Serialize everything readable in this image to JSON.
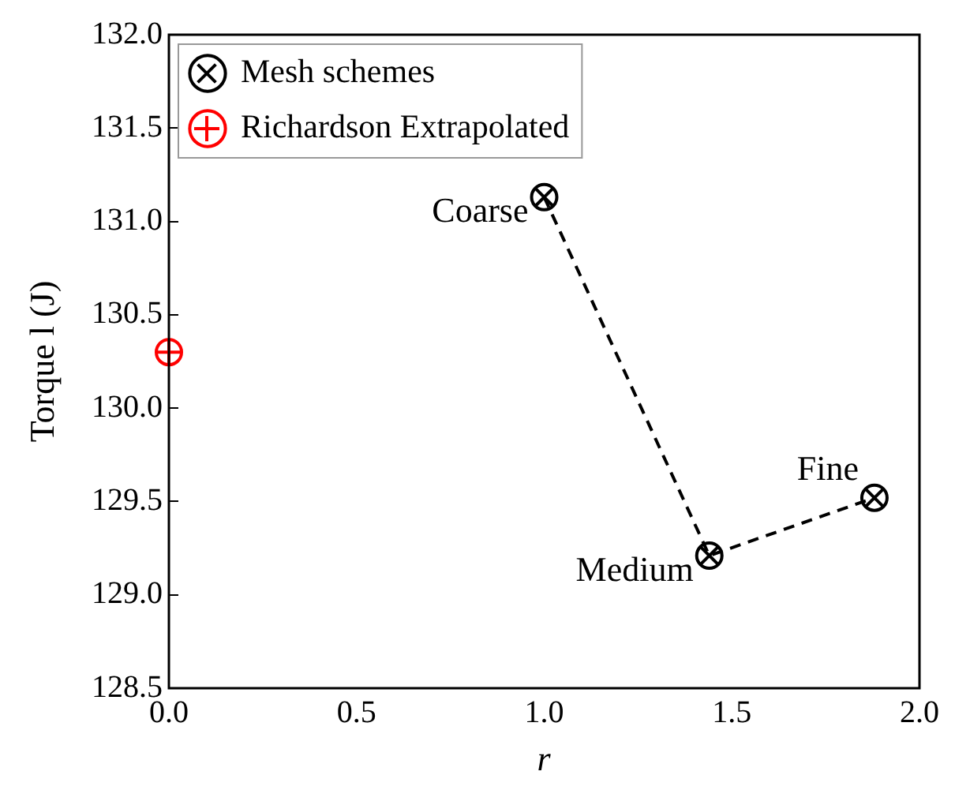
{
  "chart_data": {
    "type": "line",
    "xlabel": "r",
    "ylabel": "Torque l (J)",
    "xlim": [
      0.0,
      2.0
    ],
    "xticks": [
      {
        "value": 0,
        "label": "0.0"
      },
      0.5,
      {
        "value": 1,
        "label": "1.0"
      },
      1.5,
      {
        "value": 2,
        "label": "2.0"
      }
    ],
    "ylim": [
      128.5,
      132.0
    ],
    "yticks": [
      128.5,
      {
        "value": 129,
        "label": "129.0"
      },
      129.5,
      {
        "value": 130,
        "label": "130.0"
      },
      130.5,
      {
        "value": 131,
        "label": "131.0"
      },
      131.5,
      {
        "value": 132,
        "label": "132.0"
      }
    ],
    "grid": false,
    "legend": "top left",
    "series": [
      {
        "name": "Mesh schemes",
        "color": "#000000",
        "x": [
          1.0,
          1.44,
          1.88
        ],
        "values": [
          131.13,
          129.21,
          129.52
        ],
        "marker": "circle",
        "line_style": "dashed"
      },
      {
        "name": "Richardson Extrapolated",
        "type": "scatter",
        "color": "#ff0000",
        "x": [
          0.0
        ],
        "values": [
          130.3
        ],
        "marker": "circle"
      }
    ],
    "annotations": [
      {
        "text": "Coarse",
        "x": 1.0,
        "y": 131.13
      },
      {
        "text": "Medium",
        "x": 1.44,
        "y": 129.21
      },
      {
        "text": "Fine",
        "x": 1.88,
        "y": 129.52
      }
    ]
  }
}
